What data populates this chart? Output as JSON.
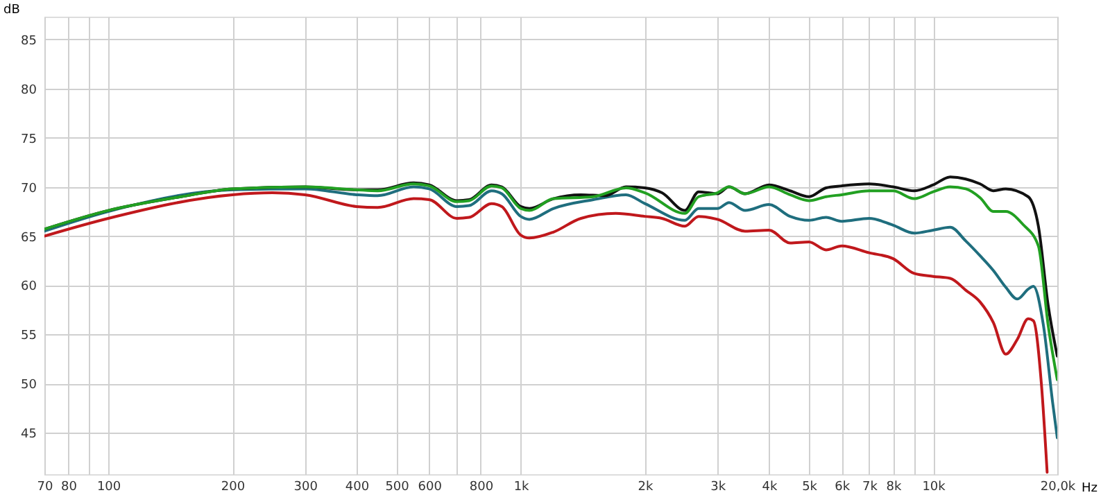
{
  "chart_data": {
    "type": "line",
    "xlabel": "Hz",
    "ylabel": "dB",
    "log": "x",
    "grid": true,
    "line_style": "solid",
    "marker": "none",
    "xlim": [
      70,
      20000
    ],
    "ylim": [
      40.8,
      87.3
    ],
    "xticks": [
      70,
      80,
      {
        "value": 90,
        "label": null
      },
      100,
      200,
      300,
      400,
      500,
      600,
      {
        "value": 700,
        "label": null
      },
      800,
      {
        "value": 1000,
        "label": "1k"
      },
      {
        "value": 2000,
        "label": "2k"
      },
      {
        "value": 3000,
        "label": "3k"
      },
      {
        "value": 4000,
        "label": "4k"
      },
      {
        "value": 5000,
        "label": "5k"
      },
      {
        "value": 6000,
        "label": "6k"
      },
      {
        "value": 7000,
        "label": "7k"
      },
      {
        "value": 8000,
        "label": "8k"
      },
      {
        "value": 9000,
        "label": null
      },
      {
        "value": 10000,
        "label": "10k"
      },
      {
        "value": 20000,
        "label": "20,0k"
      }
    ],
    "yticks": [
      45,
      50,
      55,
      60,
      65,
      70,
      75,
      80,
      85
    ],
    "series": [
      {
        "color": "#c0181c",
        "x": [
          70,
          100,
          200,
          250,
          300,
          400,
          450,
          550,
          600,
          700,
          750,
          850,
          900,
          1000,
          1050,
          1200,
          1400,
          1700,
          2000,
          2200,
          2500,
          2700,
          3000,
          3500,
          4000,
          4500,
          5000,
          5500,
          6000,
          7000,
          8000,
          9000,
          10000,
          11000,
          12000,
          13000,
          14000,
          15000,
          16000,
          17000,
          17500,
          18300,
          18900
        ],
        "values": [
          65.0,
          66.8,
          69.2,
          69.4,
          69.2,
          68.0,
          67.9,
          68.8,
          68.7,
          66.8,
          66.9,
          68.3,
          68.0,
          65.1,
          64.8,
          65.4,
          66.8,
          67.3,
          67.0,
          66.8,
          66.0,
          67.0,
          66.7,
          65.5,
          65.6,
          64.3,
          64.4,
          63.6,
          64.0,
          63.3,
          62.7,
          61.2,
          60.9,
          60.7,
          59.5,
          58.3,
          56.2,
          53.0,
          54.5,
          56.6,
          56.4,
          50.0,
          41.0
        ]
      },
      {
        "color": "#1f6e7e",
        "x": [
          70,
          100,
          200,
          300,
          400,
          450,
          550,
          600,
          700,
          750,
          850,
          900,
          1000,
          1050,
          1200,
          1500,
          1800,
          2000,
          2500,
          2700,
          3000,
          3200,
          3500,
          4000,
          4500,
          5000,
          5500,
          6000,
          7000,
          8000,
          9000,
          10000,
          11000,
          12000,
          13000,
          14000,
          15000,
          16000,
          17000,
          17500,
          18500,
          19500,
          20000
        ],
        "values": [
          65.5,
          67.5,
          69.7,
          69.8,
          69.2,
          69.1,
          70.0,
          69.8,
          68.0,
          68.1,
          69.6,
          69.3,
          67.0,
          66.7,
          67.8,
          68.7,
          69.2,
          68.3,
          66.6,
          67.8,
          67.8,
          68.4,
          67.6,
          68.2,
          67.0,
          66.6,
          66.9,
          66.5,
          66.8,
          66.1,
          65.3,
          65.6,
          65.9,
          64.5,
          63.0,
          61.5,
          59.8,
          58.6,
          59.6,
          59.9,
          56.0,
          48.0,
          44.5
        ]
      },
      {
        "color": "#111111",
        "x": [
          70,
          100,
          150,
          200,
          300,
          400,
          450,
          550,
          600,
          700,
          750,
          850,
          900,
          1000,
          1050,
          1200,
          1400,
          1600,
          1800,
          2000,
          2200,
          2500,
          2700,
          3000,
          3200,
          3500,
          4000,
          4500,
          5000,
          5500,
          6000,
          7000,
          8000,
          9000,
          10000,
          11000,
          12000,
          13000,
          14000,
          15000,
          17000,
          18000,
          19000,
          20000
        ],
        "values": [
          65.7,
          67.6,
          69.0,
          69.8,
          70.0,
          69.7,
          69.7,
          70.4,
          70.2,
          68.6,
          68.7,
          70.2,
          70.0,
          68.0,
          67.8,
          68.8,
          69.2,
          69.1,
          70.0,
          69.9,
          69.4,
          67.6,
          69.5,
          69.3,
          70.0,
          69.3,
          70.2,
          69.6,
          69.0,
          69.9,
          70.1,
          70.3,
          70.0,
          69.6,
          70.2,
          71.0,
          70.8,
          70.3,
          69.6,
          69.8,
          69.0,
          66.0,
          58.0,
          52.8
        ]
      },
      {
        "color": "#22a022",
        "x": [
          70,
          100,
          150,
          200,
          300,
          400,
          450,
          550,
          600,
          700,
          750,
          850,
          900,
          1000,
          1050,
          1200,
          1500,
          1800,
          2000,
          2500,
          2700,
          3000,
          3200,
          3500,
          4000,
          4500,
          5000,
          5500,
          6000,
          7000,
          8000,
          9000,
          10000,
          11000,
          12000,
          13000,
          14000,
          15000,
          16500,
          18000,
          19000,
          20000
        ],
        "values": [
          65.7,
          67.6,
          69.0,
          69.8,
          70.0,
          69.7,
          69.6,
          70.3,
          70.1,
          68.5,
          68.6,
          70.1,
          69.9,
          67.8,
          67.6,
          68.8,
          69.0,
          69.9,
          69.4,
          67.3,
          69.0,
          69.4,
          70.0,
          69.3,
          70.0,
          69.2,
          68.6,
          69.0,
          69.2,
          69.6,
          69.6,
          68.8,
          69.5,
          70.0,
          69.8,
          68.9,
          67.5,
          67.5,
          66.2,
          64.0,
          56.0,
          50.4
        ]
      }
    ]
  }
}
